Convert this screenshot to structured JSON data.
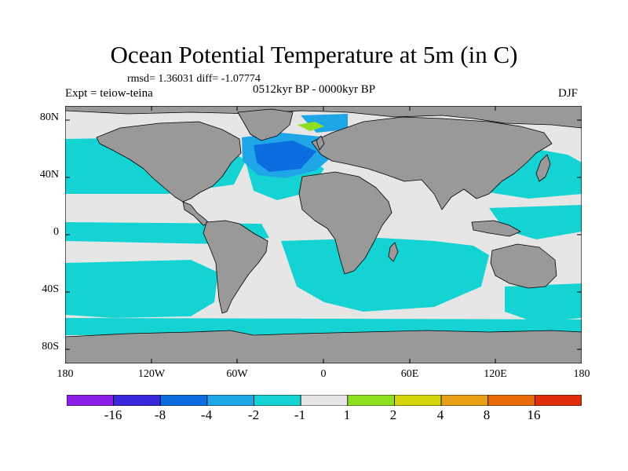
{
  "header": {
    "title": "Ocean Potential Temperature at 5m (in C)",
    "stats": "rmsd= 1.36031 diff= -1.07774",
    "experiment": "Expt = teiow-teina",
    "period": "0512kyr BP - 0000kyr BP",
    "season": "DJF"
  },
  "map": {
    "projection": "cylindrical-equidistant",
    "lon_range": [
      -180,
      180
    ],
    "lat_range": [
      -90,
      90
    ],
    "lat_ticks": [
      {
        "value": 80,
        "label": "80N"
      },
      {
        "value": 40,
        "label": "40N"
      },
      {
        "value": 0,
        "label": "0"
      },
      {
        "value": -40,
        "label": "40S"
      },
      {
        "value": -80,
        "label": "80S"
      }
    ],
    "lon_ticks": [
      {
        "value": -180,
        "label": "180"
      },
      {
        "value": -120,
        "label": "120W"
      },
      {
        "value": -60,
        "label": "60W"
      },
      {
        "value": 0,
        "label": "0"
      },
      {
        "value": 60,
        "label": "60E"
      },
      {
        "value": 120,
        "label": "120E"
      },
      {
        "value": 180,
        "label": "180"
      }
    ],
    "land_color": "#999999",
    "ocean_neutral_color": "#e6e6e6"
  },
  "colorbar": {
    "colors": [
      "#8b1ee8",
      "#3a28dc",
      "#0a6ee0",
      "#1fa6e6",
      "#15d3d3",
      "#e6e6e6",
      "#8ee01e",
      "#d4d40a",
      "#e8a014",
      "#e86b0a",
      "#e02d0a"
    ],
    "labels": [
      "-16",
      "-8",
      "-4",
      "-2",
      "-1",
      "1",
      "2",
      "4",
      "8",
      "16"
    ]
  }
}
